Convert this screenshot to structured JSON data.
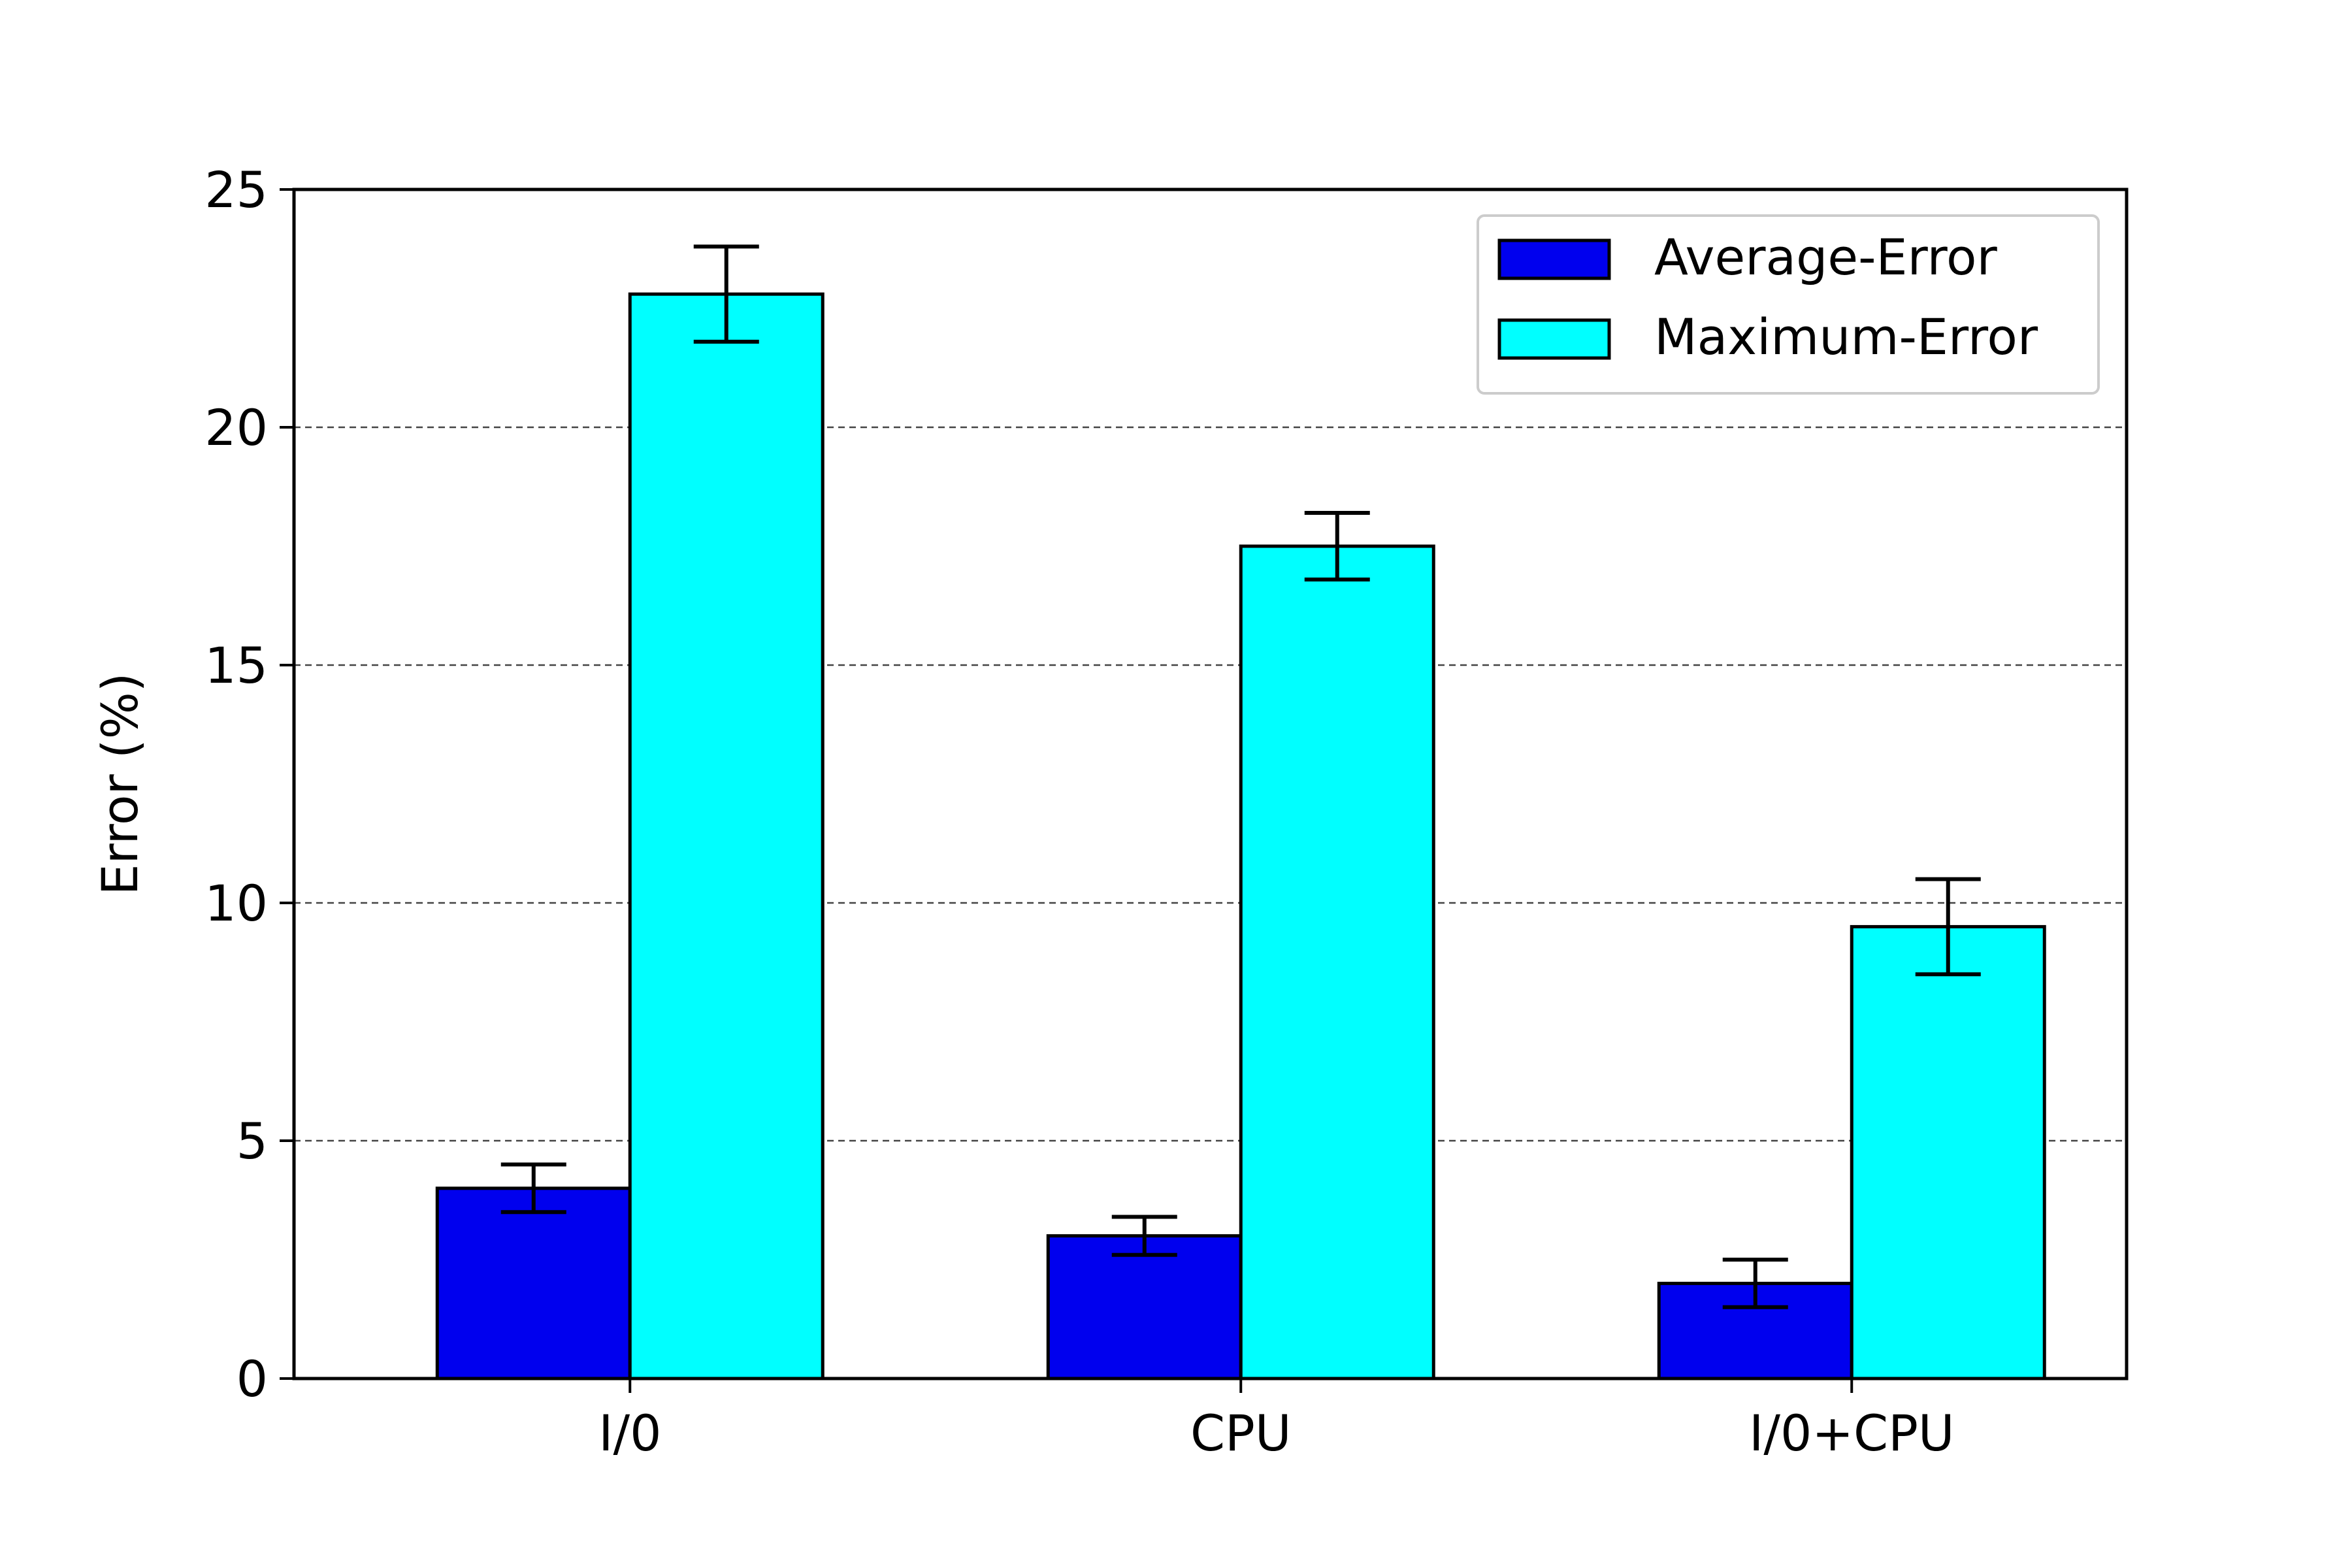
{
  "chart_data": {
    "type": "bar",
    "title": "",
    "xlabel": "",
    "ylabel": "Error (%)",
    "categories": [
      "I/0",
      "CPU",
      "I/0+CPU"
    ],
    "ylim": [
      0,
      25
    ],
    "yticks": [
      0,
      5,
      10,
      15,
      20,
      25
    ],
    "grid": "horizontal dashed",
    "legend_position": "top-right",
    "series": [
      {
        "name": "Average-Error",
        "color": "#0000ee",
        "values": [
          4.0,
          3.0,
          2.0
        ],
        "error_low": [
          3.5,
          2.6,
          1.5
        ],
        "error_high": [
          4.5,
          3.4,
          2.5
        ]
      },
      {
        "name": "Maximum-Error",
        "color": "#00ffff",
        "values": [
          22.8,
          17.5,
          9.5
        ],
        "error_low": [
          21.8,
          16.8,
          8.5
        ],
        "error_high": [
          23.8,
          18.2,
          10.5
        ]
      }
    ]
  }
}
